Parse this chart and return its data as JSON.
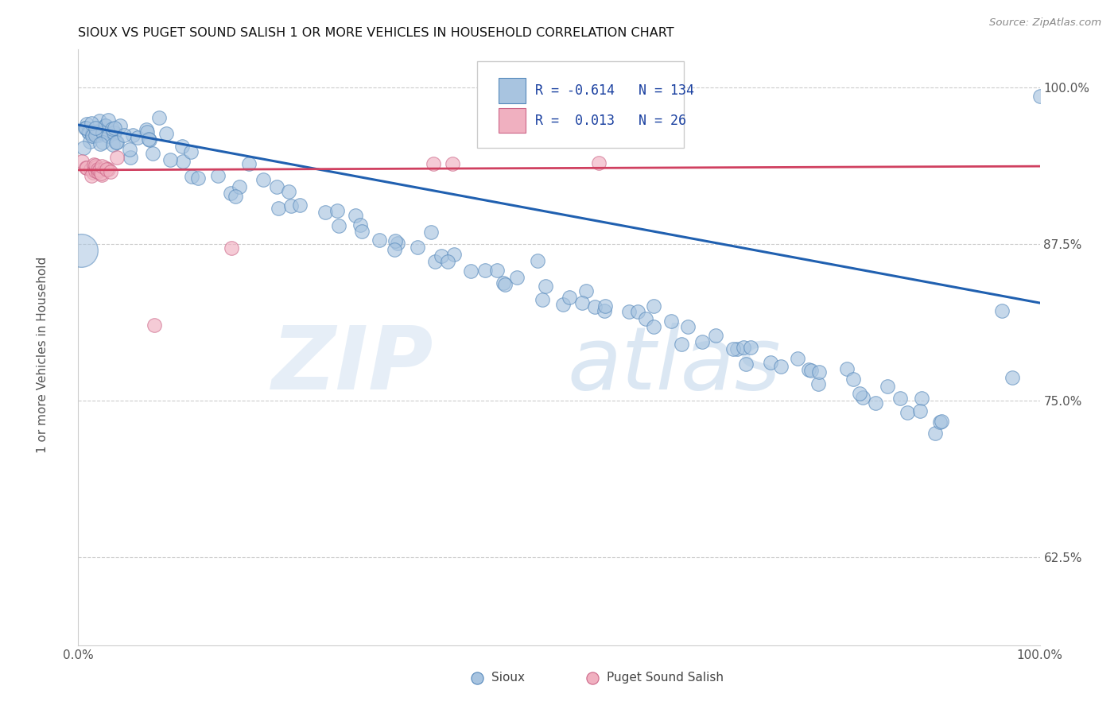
{
  "title": "SIOUX VS PUGET SOUND SALISH 1 OR MORE VEHICLES IN HOUSEHOLD CORRELATION CHART",
  "source": "Source: ZipAtlas.com",
  "ylabel": "1 or more Vehicles in Household",
  "y_tick_labels": [
    "62.5%",
    "75.0%",
    "87.5%",
    "100.0%"
  ],
  "y_tick_values": [
    0.625,
    0.75,
    0.875,
    1.0
  ],
  "legend_label_blue": "Sioux",
  "legend_label_pink": "Puget Sound Salish",
  "R_blue": -0.614,
  "N_blue": 134,
  "R_pink": 0.013,
  "N_pink": 26,
  "blue_color": "#a8c4e0",
  "pink_color": "#f0b0c0",
  "line_blue": "#2060b0",
  "line_pink": "#d04060",
  "watermark_zip": "ZIP",
  "watermark_atlas": "atlas",
  "xlim": [
    0.0,
    1.0
  ],
  "ylim": [
    0.555,
    1.03
  ],
  "blue_line_x0": 0.0,
  "blue_line_y0": 0.97,
  "blue_line_x1": 1.0,
  "blue_line_y1": 0.828,
  "pink_line_x0": 0.0,
  "pink_line_y0": 0.934,
  "pink_line_x1": 1.0,
  "pink_line_y1": 0.937,
  "blue_x": [
    0.005,
    0.008,
    0.01,
    0.01,
    0.012,
    0.013,
    0.015,
    0.015,
    0.016,
    0.018,
    0.018,
    0.02,
    0.02,
    0.021,
    0.022,
    0.023,
    0.023,
    0.024,
    0.025,
    0.025,
    0.026,
    0.027,
    0.028,
    0.029,
    0.03,
    0.03,
    0.032,
    0.034,
    0.036,
    0.038,
    0.04,
    0.042,
    0.044,
    0.046,
    0.048,
    0.05,
    0.052,
    0.055,
    0.058,
    0.06,
    0.065,
    0.07,
    0.075,
    0.08,
    0.085,
    0.09,
    0.095,
    0.1,
    0.105,
    0.11,
    0.115,
    0.12,
    0.13,
    0.14,
    0.15,
    0.16,
    0.17,
    0.18,
    0.19,
    0.2,
    0.21,
    0.22,
    0.23,
    0.24,
    0.25,
    0.26,
    0.27,
    0.28,
    0.29,
    0.3,
    0.31,
    0.32,
    0.33,
    0.34,
    0.35,
    0.36,
    0.37,
    0.38,
    0.39,
    0.4,
    0.41,
    0.42,
    0.43,
    0.44,
    0.45,
    0.46,
    0.47,
    0.48,
    0.49,
    0.5,
    0.51,
    0.52,
    0.53,
    0.54,
    0.55,
    0.56,
    0.57,
    0.58,
    0.59,
    0.6,
    0.61,
    0.62,
    0.63,
    0.64,
    0.65,
    0.66,
    0.67,
    0.68,
    0.69,
    0.7,
    0.71,
    0.72,
    0.73,
    0.74,
    0.75,
    0.76,
    0.77,
    0.78,
    0.79,
    0.8,
    0.81,
    0.82,
    0.83,
    0.84,
    0.85,
    0.86,
    0.87,
    0.88,
    0.89,
    0.9,
    0.91,
    0.96,
    0.98,
    1.0
  ],
  "blue_y": [
    0.975,
    0.96,
    0.965,
    0.975,
    0.96,
    0.97,
    0.968,
    0.955,
    0.965,
    0.965,
    0.962,
    0.96,
    0.97,
    0.958,
    0.965,
    0.963,
    0.96,
    0.962,
    0.965,
    0.97,
    0.962,
    0.967,
    0.96,
    0.965,
    0.962,
    0.958,
    0.96,
    0.96,
    0.968,
    0.958,
    0.962,
    0.96,
    0.965,
    0.958,
    0.945,
    0.96,
    0.955,
    0.96,
    0.962,
    0.958,
    0.965,
    0.96,
    0.958,
    0.94,
    0.96,
    0.962,
    0.96,
    0.945,
    0.958,
    0.94,
    0.93,
    0.945,
    0.925,
    0.93,
    0.92,
    0.928,
    0.915,
    0.935,
    0.925,
    0.91,
    0.92,
    0.915,
    0.91,
    0.905,
    0.9,
    0.895,
    0.9,
    0.895,
    0.885,
    0.88,
    0.885,
    0.88,
    0.875,
    0.87,
    0.868,
    0.865,
    0.858,
    0.86,
    0.862,
    0.858,
    0.855,
    0.85,
    0.848,
    0.855,
    0.845,
    0.848,
    0.85,
    0.84,
    0.838,
    0.835,
    0.835,
    0.832,
    0.828,
    0.83,
    0.825,
    0.822,
    0.825,
    0.82,
    0.815,
    0.812,
    0.815,
    0.81,
    0.805,
    0.808,
    0.8,
    0.798,
    0.795,
    0.792,
    0.79,
    0.788,
    0.785,
    0.782,
    0.78,
    0.778,
    0.775,
    0.772,
    0.77,
    0.768,
    0.765,
    0.762,
    0.76,
    0.758,
    0.755,
    0.752,
    0.75,
    0.748,
    0.745,
    0.742,
    0.74,
    0.738,
    0.735,
    0.828,
    0.76,
    1.0
  ],
  "blue_sizes": [
    200,
    100,
    100,
    100,
    100,
    100,
    100,
    100,
    100,
    100,
    100,
    100,
    100,
    100,
    100,
    100,
    100,
    100,
    100,
    100,
    100,
    100,
    100,
    100,
    100,
    100,
    100,
    100,
    100,
    100,
    100,
    100,
    100,
    100,
    100,
    100,
    100,
    100,
    100,
    100,
    100,
    100,
    100,
    100,
    100,
    100,
    100,
    100,
    100,
    100,
    100,
    100,
    100,
    100,
    100,
    100,
    100,
    100,
    100,
    100,
    100,
    100,
    100,
    100,
    100,
    100,
    100,
    100,
    100,
    100,
    100,
    100,
    100,
    100,
    100,
    100,
    100,
    100,
    100,
    100,
    100,
    100,
    100,
    100,
    100,
    100,
    100,
    100,
    100,
    100,
    100,
    100,
    100,
    100,
    100,
    100,
    100,
    100,
    100,
    100,
    100,
    100,
    100,
    100,
    100,
    100,
    100,
    100,
    100,
    100,
    100,
    100,
    100,
    100,
    100,
    100,
    100,
    100,
    100,
    100,
    100,
    100,
    100,
    100,
    100,
    100,
    100,
    100,
    100,
    100,
    100,
    100,
    100,
    100,
    100
  ],
  "pink_x": [
    0.005,
    0.008,
    0.01,
    0.012,
    0.014,
    0.015,
    0.016,
    0.017,
    0.018,
    0.019,
    0.02,
    0.021,
    0.022,
    0.023,
    0.025,
    0.026,
    0.027,
    0.028,
    0.03,
    0.032,
    0.04,
    0.08,
    0.16,
    0.37,
    0.39,
    0.54
  ],
  "pink_y": [
    0.94,
    0.938,
    0.932,
    0.935,
    0.936,
    0.93,
    0.932,
    0.935,
    0.934,
    0.936,
    0.933,
    0.934,
    0.93,
    0.932,
    0.934,
    0.932,
    0.935,
    0.934,
    0.932,
    0.93,
    0.94,
    0.81,
    0.87,
    0.94,
    0.938,
    0.94
  ]
}
